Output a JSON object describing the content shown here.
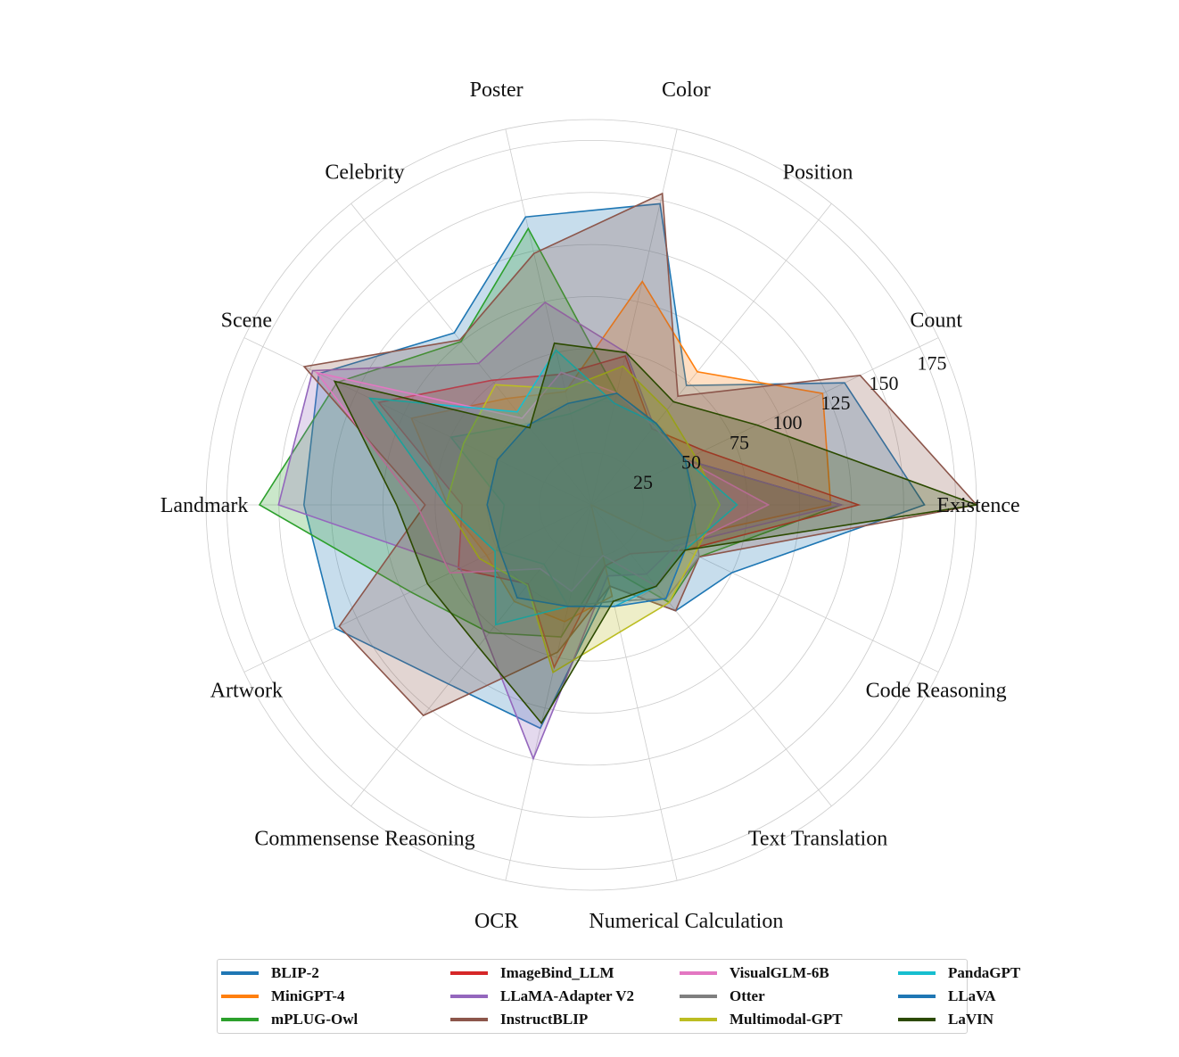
{
  "chart_data": {
    "type": "radar",
    "categories": [
      "Existence",
      "Count",
      "Position",
      "Color",
      "Poster",
      "Celebrity",
      "Scene",
      "Landmark",
      "Artwork",
      "Commensense Reasoning",
      "OCR",
      "Numerical Calculation",
      "Text Translation",
      "Code Reasoning"
    ],
    "radial_ticks": [
      "25",
      "50",
      "75",
      "100",
      "125",
      "150",
      "175"
    ],
    "rmax": 185,
    "series": [
      {
        "name": "BLIP-2",
        "color": "#1f77b4",
        "values": [
          160,
          135,
          73.3,
          148.3,
          141.8,
          105.6,
          145.2,
          138,
          136.5,
          110,
          110,
          40,
          65,
          75
        ]
      },
      {
        "name": "MiniGPT-4",
        "color": "#ff7f0e",
        "values": [
          115,
          123.3,
          81.7,
          110,
          55.8,
          65.3,
          95.8,
          69,
          55.8,
          59.3,
          57.5,
          45,
          0,
          40
        ]
      },
      {
        "name": "mPLUG-Owl",
        "color": "#2ca02c",
        "values": [
          120,
          50,
          50,
          55,
          136.1,
          100.3,
          135.5,
          159.3,
          96.3,
          78.6,
          65,
          30,
          60,
          57.5
        ]
      },
      {
        "name": "ImageBind_LLM",
        "color": "#d62728",
        "values": [
          128.3,
          60,
          46.7,
          73.3,
          64.3,
          76.5,
          113.3,
          62,
          70.8,
          48.6,
          80,
          30,
          30,
          50
        ]
      },
      {
        "name": "LLaMA-Adapter V2",
        "color": "#9467bd",
        "values": [
          120,
          50,
          48.3,
          75,
          99.7,
          86.8,
          148.5,
          150.2,
          69.8,
          81.4,
          125,
          35,
          42.5,
          45
        ]
      },
      {
        "name": "InstructBLIP",
        "color": "#8c564b",
        "values": [
          185,
          143.3,
          66.7,
          153.3,
          123.8,
          101.2,
          153,
          79.8,
          134.3,
          129.3,
          72.5,
          40,
          65,
          57.5
        ]
      },
      {
        "name": "VisualGLM-6B",
        "color": "#e377c2",
        "values": [
          85,
          50,
          48.3,
          55,
          65.3,
          53.2,
          146.3,
          83.8,
          75.3,
          39.3,
          42.5,
          25,
          50,
          47.5
        ]
      },
      {
        "name": "Otter",
        "color": "#7f7f7f",
        "values": [
          48.3,
          50,
          50,
          55,
          44.9,
          49.7,
          74.8,
          41.8,
          50.3,
          36.4,
          50,
          47.5,
          57.5,
          57.5
        ]
      },
      {
        "name": "Multimodal-GPT",
        "color": "#bcbd22",
        "values": [
          61.7,
          55,
          58.3,
          68.3,
          57.1,
          73.8,
          68,
          69.8,
          59.5,
          49.3,
          82.5,
          62.5,
          60,
          55
        ]
      },
      {
        "name": "PandaGPT",
        "color": "#17becf",
        "values": [
          70,
          50,
          50,
          50,
          76.2,
          57.1,
          118,
          69.8,
          51.3,
          73.6,
          50,
          50,
          50,
          50
        ]
      },
      {
        "name": "LLaVA",
        "color": "#1f77b4",
        "values": [
          50,
          50,
          50,
          55,
          50,
          48.8,
          50,
          50,
          49,
          57.1,
          50,
          50,
          57.5,
          50
        ]
      },
      {
        "name": "LaVIN",
        "color": "#2c4a00",
        "values": [
          185,
          88.3,
          63.3,
          75,
          79.6,
          47.4,
          136.8,
          93.5,
          87.3,
          87.1,
          107.5,
          47.5,
          50,
          50
        ]
      }
    ]
  }
}
